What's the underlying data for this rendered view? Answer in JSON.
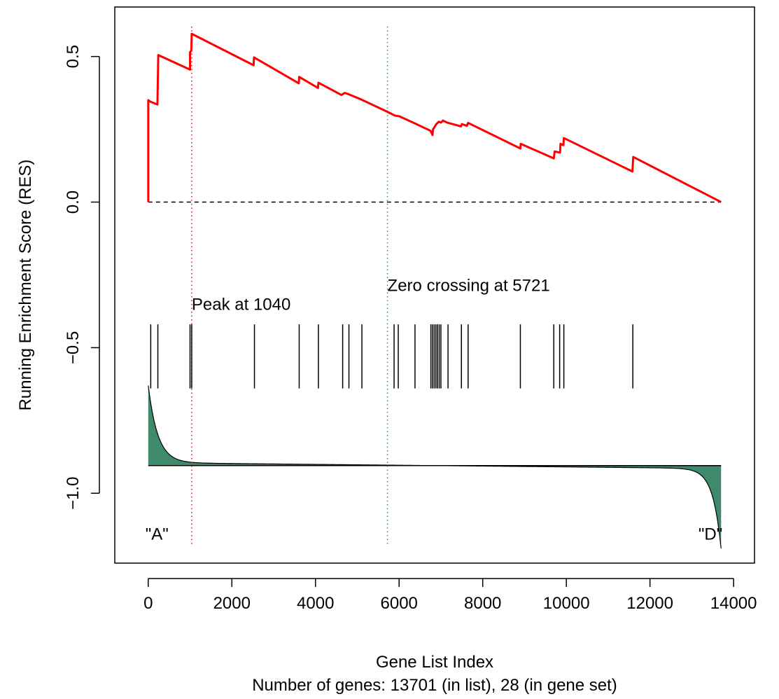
{
  "chart_data": {
    "type": "line",
    "xlabel": "Gene List Index",
    "subtitle": "Number of genes: 13701 (in list), 28 (in gene set)",
    "ylabel": "Running Enrichment Score (RES)",
    "xlim": [
      -800,
      14500
    ],
    "ylim": [
      -1.24,
      0.67
    ],
    "x_ticks": [
      0,
      2000,
      4000,
      6000,
      8000,
      10000,
      12000,
      14000
    ],
    "x_tick_labels": [
      "0",
      "2000",
      "4000",
      "6000",
      "8000",
      "10000",
      "12000",
      "14000"
    ],
    "y_ticks": [
      -1.0,
      -0.5,
      0.0,
      0.5
    ],
    "y_tick_labels": [
      "−1.0",
      "−0.5",
      "0.0",
      "0.5"
    ],
    "grid": false,
    "series": [
      {
        "color": "#ff0000",
        "x": [
          1,
          1,
          50,
          220,
          240,
          1000,
          1000,
          1030,
          1040,
          2520,
          2530,
          3600,
          3610,
          4060,
          4070,
          4620,
          4700,
          4800,
          5100,
          5721,
          5900,
          6000,
          6380,
          6750,
          6800,
          6810,
          6840,
          6880,
          6920,
          6950,
          7000,
          7050,
          7150,
          7480,
          7500,
          7620,
          7650,
          8900,
          8910,
          9700,
          9720,
          9850,
          9860,
          9930,
          9940,
          11580,
          11600,
          13701
        ],
        "y": [
          0.0,
          0.35,
          0.345,
          0.335,
          0.505,
          0.455,
          0.515,
          0.52,
          0.578,
          0.47,
          0.497,
          0.408,
          0.43,
          0.392,
          0.41,
          0.368,
          0.375,
          0.37,
          0.352,
          0.31,
          0.297,
          0.295,
          0.27,
          0.245,
          0.23,
          0.25,
          0.256,
          0.266,
          0.272,
          0.276,
          0.273,
          0.28,
          0.273,
          0.26,
          0.268,
          0.262,
          0.272,
          0.184,
          0.2,
          0.15,
          0.174,
          0.17,
          0.2,
          0.195,
          0.22,
          0.105,
          0.155,
          0.0
        ]
      }
    ],
    "baseline": 0.0,
    "hits": [
      60,
      230,
      1000,
      1040,
      2540,
      3610,
      4070,
      4650,
      4800,
      5110,
      5880,
      5980,
      6380,
      6760,
      6800,
      6840,
      6880,
      6920,
      6960,
      7000,
      7170,
      7490,
      7650,
      8900,
      9700,
      9840,
      9940,
      11590
    ],
    "hit_band": [
      -0.42,
      -0.64
    ],
    "ranked_metric": {
      "zero_line": -0.905,
      "fill_color": "#3f8a6a",
      "start": -0.64,
      "end": -1.18,
      "zero_crossing": 5721
    },
    "vlines": [
      {
        "x": 1040,
        "color": "#ff0000"
      },
      {
        "x": 5721,
        "color": "#00bb00"
      }
    ],
    "annotations": [
      {
        "text": "Peak at 1040",
        "x": 1040,
        "y": -0.37
      },
      {
        "text": "Zero crossing at 5721",
        "x": 5721,
        "y": -0.305
      },
      {
        "text": "\"A\"",
        "x": 0,
        "y": -1.16
      },
      {
        "text": "\"D\"",
        "x": 13701,
        "y": -1.16
      }
    ]
  }
}
